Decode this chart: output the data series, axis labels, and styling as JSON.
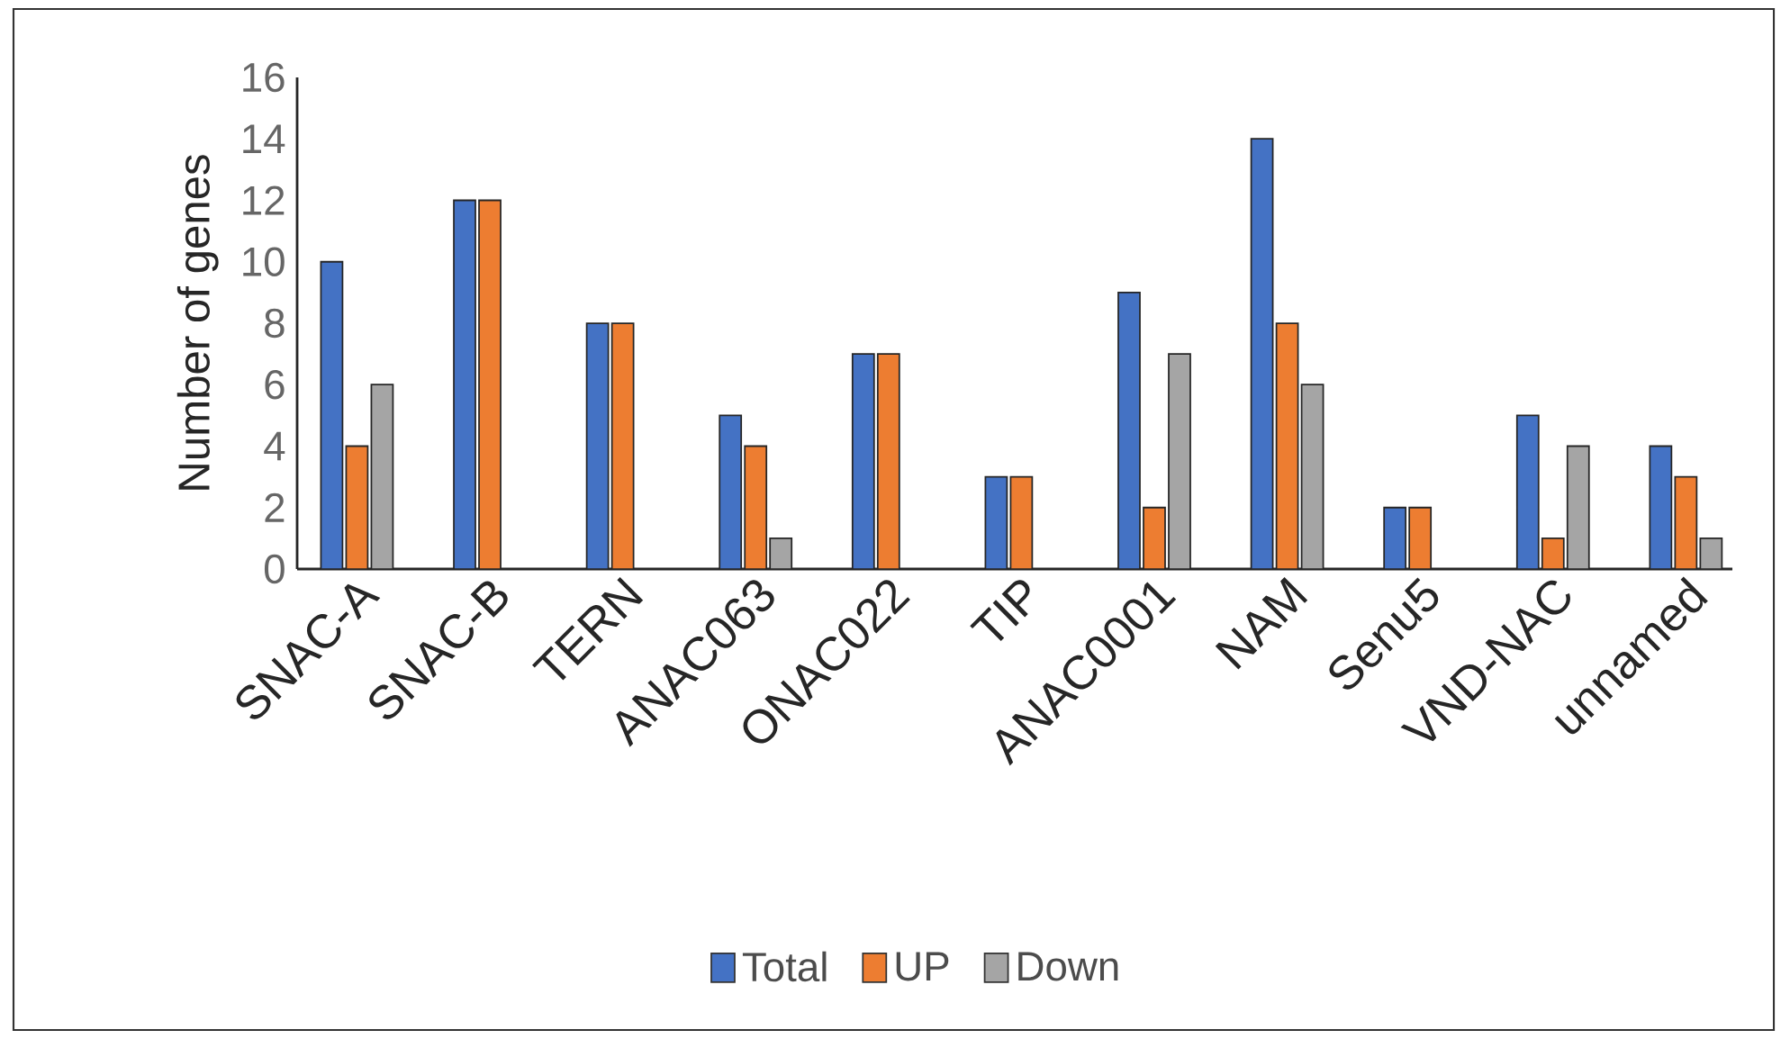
{
  "chart_data": {
    "type": "bar",
    "ylabel": "Number of genes",
    "categories": [
      "SNAC-A",
      "SNAC-B",
      "TERN",
      "ANAC063",
      "ONAC022",
      "TIP",
      "ANAC0001",
      "NAM",
      "Senu5",
      "VND-NAC",
      "unnamed"
    ],
    "ylim": [
      0,
      16
    ],
    "yticks": [
      0,
      2,
      4,
      6,
      8,
      10,
      12,
      14,
      16
    ],
    "legend": "bottom",
    "series": [
      {
        "name": "Total",
        "color": "#4472c4",
        "values": [
          10,
          12,
          8,
          5,
          7,
          3,
          9,
          14,
          2,
          5,
          4
        ]
      },
      {
        "name": "UP",
        "color": "#ed7d31",
        "values": [
          4,
          12,
          8,
          4,
          7,
          3,
          2,
          8,
          2,
          1,
          3
        ]
      },
      {
        "name": "Down",
        "color": "#a5a5a5",
        "values": [
          6,
          null,
          null,
          1,
          null,
          null,
          7,
          6,
          null,
          4,
          1
        ]
      }
    ]
  }
}
